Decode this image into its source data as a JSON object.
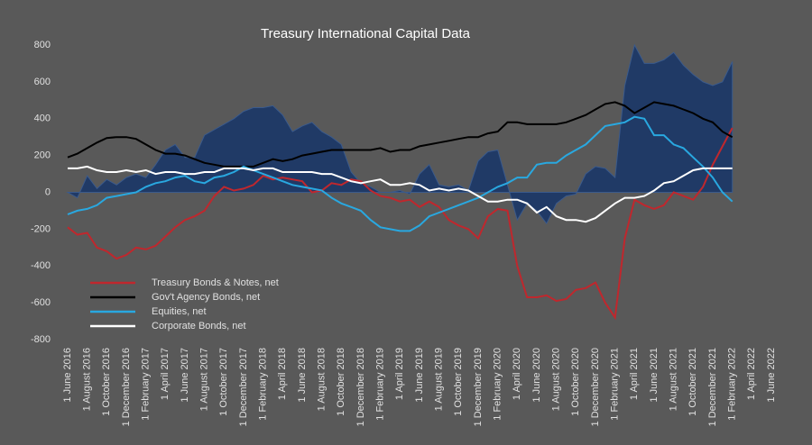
{
  "chart_data": {
    "type": "line",
    "title": "Treasury International Capital Data",
    "categories": [
      "1 June 2016",
      null,
      "1 August 2016",
      null,
      "1 October 2016",
      null,
      "1 December 2016",
      null,
      "1 February 2017",
      null,
      "1 April 2017",
      null,
      "1 June 2017",
      null,
      "1 August 2017",
      null,
      "1 October 2017",
      null,
      "1 December 2017",
      null,
      "1 February 2018",
      null,
      "1 April 2018",
      null,
      "1 June 2018",
      null,
      "1 August 2018",
      null,
      "1 October 2018",
      null,
      "1 December 2018",
      null,
      "1 February 2019",
      null,
      "1 April 2019",
      null,
      "1 June 2019",
      null,
      "1 August 2019",
      null,
      "1 October 2019",
      null,
      "1 December 2019",
      null,
      "1 February 2020",
      null,
      "1 April 2020",
      null,
      "1 June 2020",
      null,
      "1 August 2020",
      null,
      "1 October 2020",
      null,
      "1 December 2020",
      null,
      "1 February 2021",
      null,
      "1 April 2021",
      null,
      "1 June 2021",
      null,
      "1 August 2021",
      null,
      "1 October 2021",
      null,
      "1 December 2021",
      null,
      "1 February 2022",
      null,
      "1 April 2022",
      null,
      "1 June 2022"
    ],
    "area": {
      "color": "#203a66",
      "values": [
        0,
        -30,
        90,
        20,
        70,
        40,
        80,
        100,
        80,
        150,
        230,
        260,
        190,
        190,
        310,
        340,
        370,
        400,
        440,
        460,
        460,
        470,
        420,
        330,
        360,
        380,
        330,
        300,
        260,
        110,
        50,
        30,
        0,
        0,
        10,
        -10,
        100,
        150,
        40,
        30,
        40,
        10,
        170,
        220,
        230,
        40,
        -150,
        -60,
        -100,
        -170,
        -60,
        -20,
        -10,
        100,
        140,
        130,
        80,
        580,
        800,
        700,
        700,
        720,
        760,
        690,
        640,
        600,
        580,
        600,
        710,
        null,
        null,
        null,
        null
      ]
    },
    "series": [
      {
        "name": "Treasury Bonds & Notes, net",
        "color": "#c0272d",
        "values": [
          -190,
          -230,
          -220,
          -300,
          -320,
          -360,
          -340,
          -300,
          -310,
          -290,
          -240,
          -190,
          -150,
          -130,
          -100,
          -20,
          30,
          10,
          20,
          40,
          90,
          70,
          80,
          70,
          60,
          0,
          10,
          50,
          40,
          70,
          60,
          10,
          -20,
          -30,
          -50,
          -40,
          -80,
          -50,
          -80,
          -150,
          -180,
          -200,
          -250,
          -130,
          -90,
          -100,
          -400,
          -570,
          -570,
          -560,
          -590,
          -580,
          -530,
          -520,
          -490,
          -600,
          -680,
          -250,
          -40,
          -70,
          -90,
          -70,
          0,
          -20,
          -40,
          30,
          150,
          250,
          350,
          null,
          null,
          null,
          null
        ]
      },
      {
        "name": "Gov't Agency Bonds, net",
        "color": "#000000",
        "values": [
          190,
          210,
          240,
          270,
          295,
          300,
          300,
          290,
          260,
          230,
          210,
          210,
          200,
          180,
          160,
          150,
          140,
          140,
          140,
          140,
          160,
          180,
          170,
          180,
          200,
          210,
          220,
          230,
          230,
          230,
          230,
          230,
          240,
          220,
          230,
          230,
          250,
          260,
          270,
          280,
          290,
          300,
          300,
          320,
          330,
          380,
          380,
          370,
          370,
          370,
          370,
          380,
          400,
          420,
          450,
          480,
          490,
          470,
          430,
          460,
          490,
          480,
          470,
          450,
          430,
          400,
          380,
          330,
          300,
          null,
          null,
          null,
          null
        ]
      },
      {
        "name": "Equities, net",
        "color": "#29a8e0",
        "values": [
          -120,
          -100,
          -90,
          -70,
          -30,
          -20,
          -10,
          0,
          30,
          50,
          60,
          80,
          90,
          60,
          50,
          80,
          90,
          110,
          140,
          120,
          100,
          80,
          60,
          40,
          30,
          20,
          10,
          -30,
          -60,
          -80,
          -100,
          -150,
          -190,
          -200,
          -210,
          -210,
          -180,
          -130,
          -110,
          -90,
          -70,
          -50,
          -30,
          0,
          30,
          50,
          80,
          80,
          150,
          160,
          160,
          200,
          230,
          260,
          310,
          360,
          370,
          380,
          410,
          400,
          310,
          310,
          260,
          240,
          190,
          140,
          80,
          0,
          -50,
          null,
          null,
          null,
          null
        ]
      },
      {
        "name": "Corporate Bonds, net",
        "color": "#ffffff",
        "values": [
          130,
          130,
          140,
          120,
          110,
          110,
          120,
          110,
          120,
          100,
          110,
          110,
          100,
          100,
          110,
          110,
          130,
          130,
          130,
          120,
          130,
          130,
          110,
          110,
          110,
          110,
          100,
          100,
          80,
          60,
          50,
          60,
          70,
          40,
          40,
          50,
          40,
          10,
          20,
          10,
          20,
          10,
          -20,
          -50,
          -50,
          -40,
          -40,
          -60,
          -110,
          -80,
          -130,
          -150,
          -150,
          -160,
          -140,
          -100,
          -60,
          -30,
          -30,
          -20,
          10,
          50,
          60,
          90,
          120,
          130,
          130,
          130,
          130,
          null,
          null,
          null,
          null
        ]
      }
    ],
    "ylim": [
      -800,
      800
    ],
    "yticks": [
      -800,
      -600,
      -400,
      -200,
      0,
      200,
      400,
      600,
      800
    ]
  }
}
